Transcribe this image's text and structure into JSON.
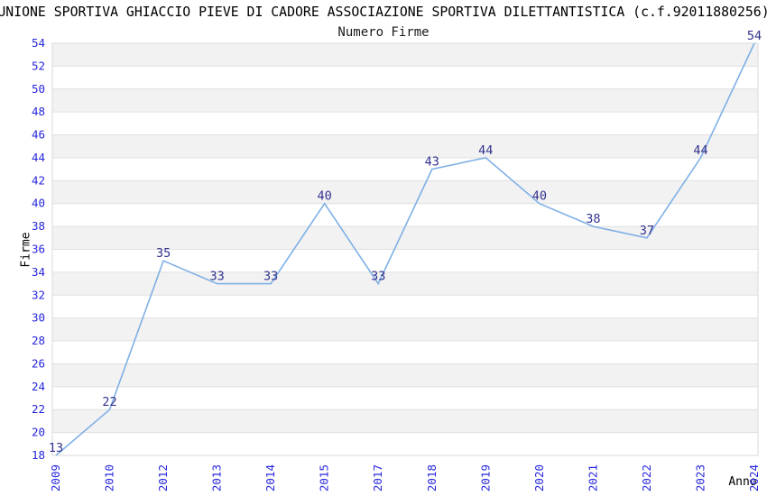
{
  "header": {
    "title": "UNIONE SPORTIVA GHIACCIO PIEVE DI CADORE ASSOCIAZIONE SPORTIVA DILETTANTISTICA (c.f.92011880256)",
    "subtitle": "Numero Firme"
  },
  "axes": {
    "x_label": "Anno",
    "y_label": "Firme"
  },
  "colors": {
    "line": "#7fb0e6",
    "tick_label": "#2626dd",
    "data_label": "#32328f",
    "grid_line": "#e0e0e0",
    "band": "#f2f2f2",
    "plot_border": "#d9d9d9",
    "background": "#ffffff"
  },
  "chart_data": {
    "type": "line",
    "title": "Numero Firme",
    "xlabel": "Anno",
    "ylabel": "Firme",
    "x": [
      "2009",
      "2010",
      "2012",
      "2013",
      "2014",
      "2015",
      "2017",
      "2018",
      "2019",
      "2020",
      "2021",
      "2022",
      "2023",
      "2024"
    ],
    "series": [
      {
        "name": "Numero Firme",
        "values": [
          13,
          22,
          35,
          33,
          33,
          40,
          33,
          43,
          44,
          40,
          38,
          37,
          44,
          54
        ]
      }
    ],
    "ylim": [
      18,
      54
    ],
    "ytick_step": 2,
    "yticks": [
      18,
      20,
      22,
      24,
      26,
      28,
      30,
      32,
      34,
      36,
      38,
      40,
      42,
      44,
      46,
      48,
      50,
      52,
      54
    ],
    "xticklabel_rotation": 90,
    "grid": "horizontal",
    "background_stripes": true,
    "legend": "none",
    "point_labels_visible": true,
    "values_below_ymin_clamped": true
  }
}
